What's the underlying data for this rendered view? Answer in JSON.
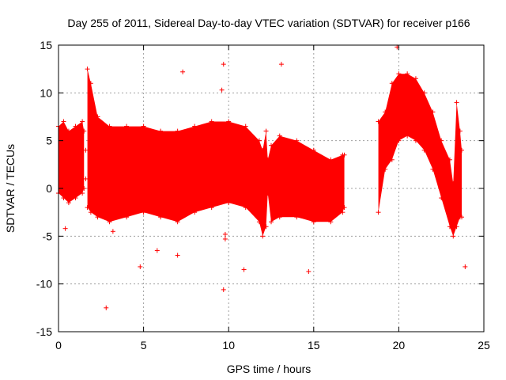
{
  "chart_data": {
    "type": "scatter",
    "title": "Day 255 of 2011, Sidereal Day-to-day VTEC variation (SDTVAR) for receiver p166",
    "xlabel": "GPS time / hours",
    "ylabel": "SDTVAR / TECUs",
    "xlim": [
      0,
      25
    ],
    "ylim": [
      -15,
      15
    ],
    "xticks": [
      "0",
      "5",
      "10",
      "15",
      "20",
      "25"
    ],
    "yticks": [
      "15",
      "10",
      "5",
      "0",
      "-5",
      "-10",
      "-15"
    ],
    "xtick_values": [
      0,
      5,
      10,
      15,
      20,
      25
    ],
    "ytick_values": [
      15,
      10,
      5,
      0,
      -5,
      -10,
      -15
    ],
    "grid": true,
    "marker": "+",
    "color": "#ff0000",
    "series": [
      {
        "name": "SDTVAR",
        "envelope": [
          {
            "x": 0.0,
            "upper": 6.5,
            "lower": -0.5
          },
          {
            "x": 0.3,
            "upper": 7.0,
            "lower": -1.0
          },
          {
            "x": 0.6,
            "upper": 6.0,
            "lower": -1.5
          },
          {
            "x": 1.0,
            "upper": 6.5,
            "lower": -1.0
          },
          {
            "x": 1.4,
            "upper": 7.0,
            "lower": -0.5
          },
          {
            "x": 1.5,
            "upper": 6.0,
            "lower": 0.0
          },
          {
            "x": 1.6,
            "upper": 4.0,
            "lower": 1.0
          },
          {
            "x": 1.7,
            "upper": 12.5,
            "lower": -2.0
          },
          {
            "x": 1.9,
            "upper": 11.0,
            "lower": -2.5
          },
          {
            "x": 2.3,
            "upper": 7.5,
            "lower": -3.0
          },
          {
            "x": 3.0,
            "upper": 6.5,
            "lower": -3.5
          },
          {
            "x": 4.0,
            "upper": 6.5,
            "lower": -3.0
          },
          {
            "x": 5.0,
            "upper": 6.5,
            "lower": -2.5
          },
          {
            "x": 6.0,
            "upper": 6.0,
            "lower": -3.0
          },
          {
            "x": 7.0,
            "upper": 6.0,
            "lower": -3.5
          },
          {
            "x": 8.0,
            "upper": 6.5,
            "lower": -2.5
          },
          {
            "x": 9.0,
            "upper": 7.0,
            "lower": -2.0
          },
          {
            "x": 10.0,
            "upper": 7.0,
            "lower": -1.5
          },
          {
            "x": 11.0,
            "upper": 6.5,
            "lower": -2.0
          },
          {
            "x": 11.8,
            "upper": 5.0,
            "lower": -3.5
          },
          {
            "x": 12.0,
            "upper": 4.0,
            "lower": -5.0
          },
          {
            "x": 12.2,
            "upper": 6.0,
            "lower": -4.0
          },
          {
            "x": 12.3,
            "upper": 3.0,
            "lower": -0.5
          },
          {
            "x": 12.5,
            "upper": 4.5,
            "lower": -3.5
          },
          {
            "x": 13.0,
            "upper": 5.5,
            "lower": -3.0
          },
          {
            "x": 14.0,
            "upper": 5.0,
            "lower": -3.0
          },
          {
            "x": 15.0,
            "upper": 4.0,
            "lower": -3.5
          },
          {
            "x": 16.0,
            "upper": 3.0,
            "lower": -3.5
          },
          {
            "x": 16.7,
            "upper": 3.5,
            "lower": -2.5
          },
          {
            "x": 16.8,
            "upper": 3.5,
            "lower": -2.0
          }
        ],
        "envelope_gap": [
          16.8,
          18.8
        ],
        "envelope2": [
          {
            "x": 18.8,
            "upper": 7.0,
            "lower": -2.5
          },
          {
            "x": 19.2,
            "upper": 8.0,
            "lower": 2.0
          },
          {
            "x": 19.6,
            "upper": 11.0,
            "lower": 3.0
          },
          {
            "x": 20.0,
            "upper": 12.0,
            "lower": 5.0
          },
          {
            "x": 20.5,
            "upper": 12.0,
            "lower": 5.5
          },
          {
            "x": 21.0,
            "upper": 11.5,
            "lower": 5.0
          },
          {
            "x": 21.5,
            "upper": 10.0,
            "lower": 4.0
          },
          {
            "x": 22.0,
            "upper": 8.0,
            "lower": 2.0
          },
          {
            "x": 22.5,
            "upper": 5.0,
            "lower": -1.0
          },
          {
            "x": 23.0,
            "upper": 3.0,
            "lower": -4.0
          },
          {
            "x": 23.2,
            "upper": 0.5,
            "lower": -5.0
          },
          {
            "x": 23.4,
            "upper": 9.0,
            "lower": -4.0
          },
          {
            "x": 23.6,
            "upper": 6.0,
            "lower": -3.0
          },
          {
            "x": 23.7,
            "upper": 4.0,
            "lower": -3.0
          }
        ],
        "outliers": [
          {
            "x": 0.4,
            "y": -4.2
          },
          {
            "x": 2.8,
            "y": -12.5
          },
          {
            "x": 4.8,
            "y": -8.2
          },
          {
            "x": 9.7,
            "y": 13.0
          },
          {
            "x": 9.6,
            "y": 10.3
          },
          {
            "x": 9.7,
            "y": -10.6
          },
          {
            "x": 9.8,
            "y": -4.8
          },
          {
            "x": 9.8,
            "y": -5.3
          },
          {
            "x": 10.9,
            "y": -8.5
          },
          {
            "x": 13.1,
            "y": 13.0
          },
          {
            "x": 14.7,
            "y": -8.7
          },
          {
            "x": 23.9,
            "y": -8.2
          },
          {
            "x": 5.8,
            "y": -6.5
          },
          {
            "x": 7.0,
            "y": -7.0
          },
          {
            "x": 7.3,
            "y": 12.2
          },
          {
            "x": 3.2,
            "y": -4.5
          },
          {
            "x": 19.9,
            "y": 14.8
          }
        ]
      }
    ]
  }
}
